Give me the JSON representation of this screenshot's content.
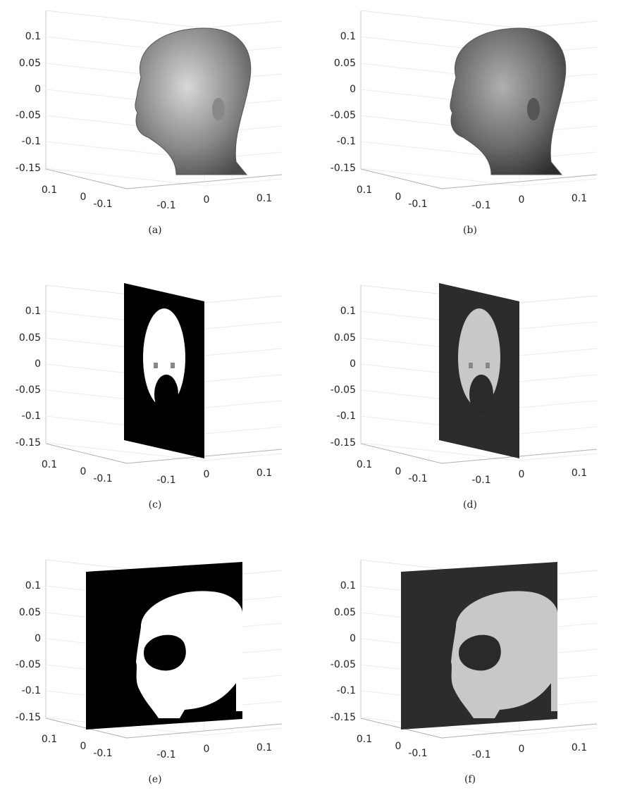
{
  "panels": [
    {
      "caption": "(a)",
      "z_ticks": [
        "0.1",
        "0.05",
        "0",
        "-0.05",
        "-0.1",
        "-0.15"
      ],
      "y_ticks": [
        "0.1",
        "0",
        "-0.1"
      ],
      "x_ticks": [
        "-0.1",
        "0",
        "0.1"
      ]
    },
    {
      "caption": "(b)",
      "z_ticks": [
        "0.1",
        "0.05",
        "0",
        "-0.05",
        "-0.1",
        "-0.15"
      ],
      "y_ticks": [
        "0.1",
        "0",
        "-0.1"
      ],
      "x_ticks": [
        "-0.1",
        "0",
        "0.1"
      ]
    },
    {
      "caption": "(c)",
      "z_ticks": [
        "0.1",
        "0.05",
        "0",
        "-0.05",
        "-0.1",
        "-0.15"
      ],
      "y_ticks": [
        "0.1",
        "0",
        "-0.1"
      ],
      "x_ticks": [
        "-0.1",
        "0",
        "0.1"
      ]
    },
    {
      "caption": "(d)",
      "z_ticks": [
        "0.1",
        "0.05",
        "0",
        "-0.05",
        "-0.1",
        "-0.15"
      ],
      "y_ticks": [
        "0.1",
        "0",
        "-0.1"
      ],
      "x_ticks": [
        "-0.1",
        "0",
        "0.1"
      ]
    },
    {
      "caption": "(e)",
      "z_ticks": [
        "0.1",
        "0.05",
        "0",
        "-0.05",
        "-0.1",
        "-0.15"
      ],
      "y_ticks": [
        "0.1",
        "0",
        "-0.1"
      ],
      "x_ticks": [
        "-0.1",
        "0",
        "0.1"
      ]
    },
    {
      "caption": "(f)",
      "z_ticks": [
        "0.1",
        "0.05",
        "0",
        "-0.05",
        "-0.1",
        "-0.15"
      ],
      "y_ticks": [
        "0.1",
        "0",
        "-0.1"
      ],
      "x_ticks": [
        "-0.1",
        "0",
        "0.1"
      ]
    }
  ]
}
